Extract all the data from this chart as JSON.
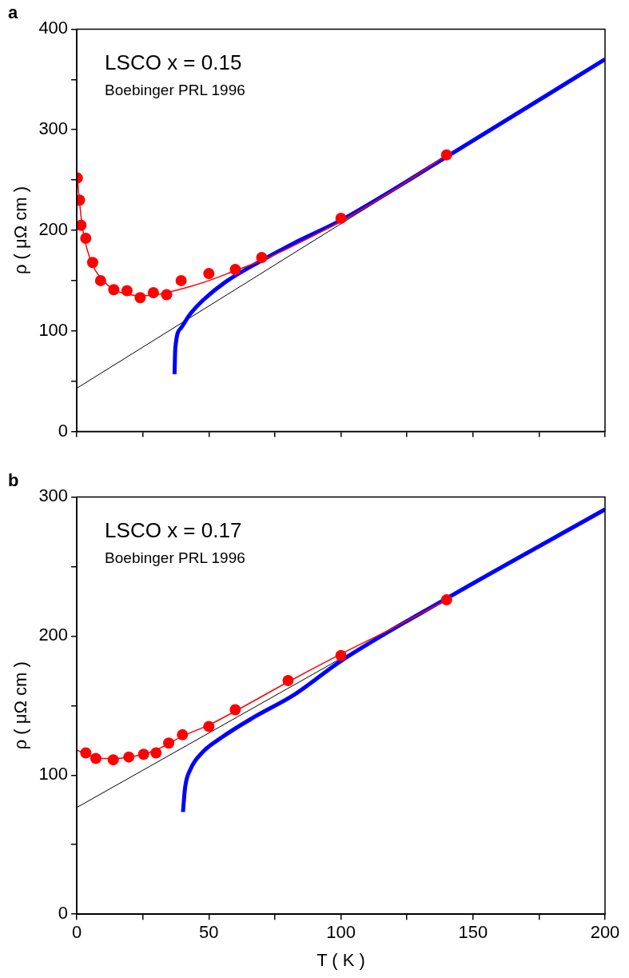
{
  "chart_data": [
    {
      "type": "scatter",
      "title": "a",
      "ylabel": "ρ ( μΩ cm )",
      "annotations": [
        "LSCO x = 0.15",
        "Boebinger PRL 1996"
      ],
      "xlim": [
        0,
        200
      ],
      "ylim": [
        0,
        400
      ],
      "xticks": [
        0,
        {
          "value": 25,
          "label": null
        },
        50,
        {
          "value": 75,
          "label": null
        },
        100,
        {
          "value": 125,
          "label": null
        },
        150,
        {
          "value": 175,
          "label": null
        },
        200
      ],
      "yticks": [
        0,
        {
          "value": 50,
          "label": null
        },
        100,
        {
          "value": 150,
          "label": null
        },
        200,
        {
          "value": 250,
          "label": null
        },
        300,
        {
          "value": 350,
          "label": null
        },
        400
      ],
      "tick_labels": "y",
      "grid": false,
      "legend": false,
      "series": [
        {
          "type": "scatter",
          "marker": "circle",
          "color": "#ff0000",
          "x": [
            0.2,
            1,
            1.6,
            3.4,
            6,
            9,
            14,
            19,
            24,
            29,
            34,
            39.5,
            50,
            60,
            70,
            100,
            140
          ],
          "values": [
            252,
            230,
            205,
            192,
            168,
            150,
            141,
            140,
            133,
            138,
            136,
            150,
            157,
            161,
            173,
            212,
            275
          ]
        },
        {
          "type": "line",
          "marker": "none",
          "color": "#ff0000",
          "x": [
            0,
            2,
            5,
            10,
            15,
            20,
            25,
            30,
            40,
            50,
            60,
            70,
            80,
            100,
            120,
            140
          ],
          "values": [
            258,
            205,
            172,
            150,
            140,
            136,
            135,
            136,
            142,
            150,
            160,
            170,
            182,
            209,
            240,
            275
          ]
        },
        {
          "type": "line",
          "marker": "none",
          "color": "#0000ff",
          "x": [
            37,
            37.3,
            39.5,
            42.7,
            48,
            56.5,
            69.3,
            82,
            100,
            140,
            200
          ],
          "values": [
            57,
            83,
            103,
            116,
            131,
            149,
            169,
            187,
            210,
            273,
            370
          ]
        },
        {
          "type": "line",
          "marker": "none",
          "color": "#000000",
          "x": [
            0,
            200
          ],
          "values": [
            43,
            370
          ]
        }
      ]
    },
    {
      "type": "scatter",
      "title": "b",
      "xlabel": "T ( K )",
      "ylabel": "ρ ( μΩ cm )",
      "annotations": [
        "LSCO x = 0.17",
        "Boebinger PRL 1996"
      ],
      "xlim": [
        0,
        200
      ],
      "ylim": [
        0,
        300
      ],
      "xticks": [
        0,
        {
          "value": 25,
          "label": null
        },
        50,
        {
          "value": 75,
          "label": null
        },
        100,
        {
          "value": 125,
          "label": null
        },
        150,
        {
          "value": 175,
          "label": null
        },
        200
      ],
      "yticks": [
        0,
        {
          "value": 50,
          "label": null
        },
        100,
        {
          "value": 150,
          "label": null
        },
        200,
        {
          "value": 250,
          "label": null
        },
        300
      ],
      "grid": false,
      "legend": false,
      "series": [
        {
          "type": "scatter",
          "marker": "circle",
          "color": "#ff0000",
          "x": [
            3.4,
            7.2,
            13.8,
            19.7,
            25.3,
            30,
            34.8,
            40,
            50,
            60,
            80,
            100,
            140
          ],
          "values": [
            116,
            112,
            111,
            113,
            115,
            116,
            123,
            129,
            135,
            147,
            168,
            186,
            226
          ]
        },
        {
          "type": "line",
          "marker": "none",
          "color": "#ff0000",
          "x": [
            0,
            5,
            10,
            15,
            20,
            25,
            30,
            40,
            50,
            60,
            80,
            100,
            120,
            140
          ],
          "values": [
            118,
            114,
            112,
            112,
            113,
            115,
            118,
            128,
            136,
            146,
            167,
            187,
            206,
            226
          ]
        },
        {
          "type": "line",
          "marker": "none",
          "color": "#0000ff",
          "x": [
            40.2,
            41,
            43,
            47.4,
            54.8,
            66.5,
            82.5,
            100,
            140,
            200
          ],
          "values": [
            73.5,
            91,
            104,
            116,
            127,
            141,
            158,
            182,
            227,
            291
          ]
        },
        {
          "type": "line",
          "marker": "none",
          "color": "#000000",
          "x": [
            0,
            200
          ],
          "values": [
            76.7,
            291
          ]
        }
      ]
    }
  ]
}
